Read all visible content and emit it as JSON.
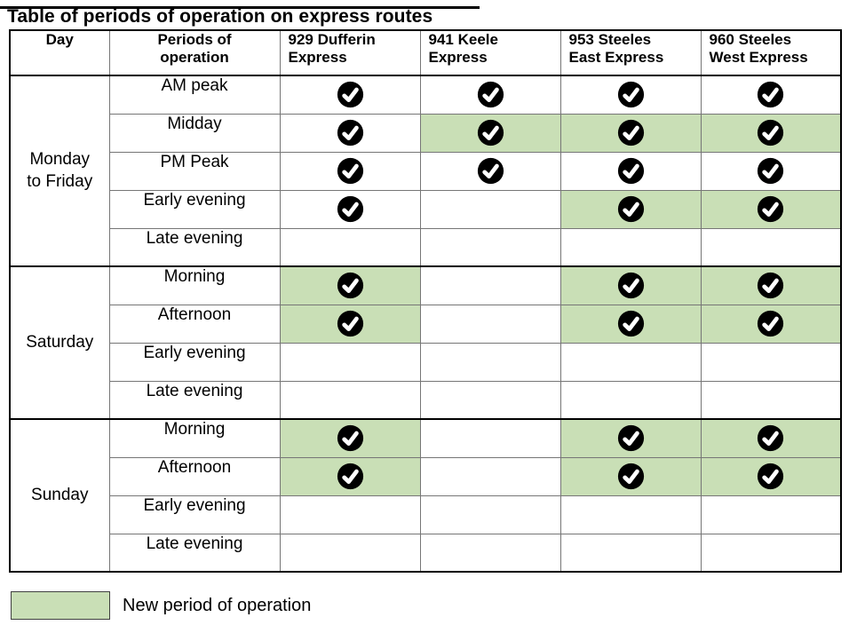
{
  "title": "Table of periods of operation on express routes",
  "colors": {
    "highlight_green": "#c9dfb6",
    "check_circle": "#000000",
    "check_mark": "#ffffff",
    "inner_grid": "#767676",
    "outer_border": "#000000"
  },
  "table": {
    "columns": [
      {
        "id": "day",
        "label": "Day"
      },
      {
        "id": "periods",
        "label": "Periods of\noperation"
      },
      {
        "id": "route-929",
        "label": "929 Dufferin\nExpress"
      },
      {
        "id": "route-941",
        "label": "941 Keele\nExpress"
      },
      {
        "id": "route-953",
        "label": "953 Steeles\nEast Express"
      },
      {
        "id": "route-960",
        "label": "960 Steeles\nWest Express"
      }
    ],
    "check_icon": "black-circle-white-check",
    "groups": [
      {
        "day": "Monday\nto Friday",
        "rows": [
          {
            "period": "AM peak",
            "cells": [
              {
                "operates": true,
                "new_period": false
              },
              {
                "operates": true,
                "new_period": false
              },
              {
                "operates": true,
                "new_period": false
              },
              {
                "operates": true,
                "new_period": false
              }
            ]
          },
          {
            "period": "Midday",
            "cells": [
              {
                "operates": true,
                "new_period": false
              },
              {
                "operates": true,
                "new_period": true
              },
              {
                "operates": true,
                "new_period": true
              },
              {
                "operates": true,
                "new_period": true
              }
            ]
          },
          {
            "period": "PM Peak",
            "cells": [
              {
                "operates": true,
                "new_period": false
              },
              {
                "operates": true,
                "new_period": false
              },
              {
                "operates": true,
                "new_period": false
              },
              {
                "operates": true,
                "new_period": false
              }
            ]
          },
          {
            "period": "Early evening",
            "cells": [
              {
                "operates": true,
                "new_period": false
              },
              {
                "operates": false,
                "new_period": false
              },
              {
                "operates": true,
                "new_period": true
              },
              {
                "operates": true,
                "new_period": true
              }
            ]
          },
          {
            "period": "Late evening",
            "cells": [
              {
                "operates": false,
                "new_period": false
              },
              {
                "operates": false,
                "new_period": false
              },
              {
                "operates": false,
                "new_period": false
              },
              {
                "operates": false,
                "new_period": false
              }
            ]
          }
        ]
      },
      {
        "day": "Saturday",
        "rows": [
          {
            "period": "Morning",
            "cells": [
              {
                "operates": true,
                "new_period": true
              },
              {
                "operates": false,
                "new_period": false
              },
              {
                "operates": true,
                "new_period": true
              },
              {
                "operates": true,
                "new_period": true
              }
            ]
          },
          {
            "period": "Afternoon",
            "cells": [
              {
                "operates": true,
                "new_period": true
              },
              {
                "operates": false,
                "new_period": false
              },
              {
                "operates": true,
                "new_period": true
              },
              {
                "operates": true,
                "new_period": true
              }
            ]
          },
          {
            "period": "Early evening",
            "cells": [
              {
                "operates": false,
                "new_period": false
              },
              {
                "operates": false,
                "new_period": false
              },
              {
                "operates": false,
                "new_period": false
              },
              {
                "operates": false,
                "new_period": false
              }
            ]
          },
          {
            "period": "Late evening",
            "cells": [
              {
                "operates": false,
                "new_period": false
              },
              {
                "operates": false,
                "new_period": false
              },
              {
                "operates": false,
                "new_period": false
              },
              {
                "operates": false,
                "new_period": false
              }
            ]
          }
        ]
      },
      {
        "day": "Sunday",
        "rows": [
          {
            "period": "Morning",
            "cells": [
              {
                "operates": true,
                "new_period": true
              },
              {
                "operates": false,
                "new_period": false
              },
              {
                "operates": true,
                "new_period": true
              },
              {
                "operates": true,
                "new_period": true
              }
            ]
          },
          {
            "period": "Afternoon",
            "cells": [
              {
                "operates": true,
                "new_period": true
              },
              {
                "operates": false,
                "new_period": false
              },
              {
                "operates": true,
                "new_period": true
              },
              {
                "operates": true,
                "new_period": true
              }
            ]
          },
          {
            "period": "Early evening",
            "cells": [
              {
                "operates": false,
                "new_period": false
              },
              {
                "operates": false,
                "new_period": false
              },
              {
                "operates": false,
                "new_period": false
              },
              {
                "operates": false,
                "new_period": false
              }
            ]
          },
          {
            "period": "Late evening",
            "cells": [
              {
                "operates": false,
                "new_period": false
              },
              {
                "operates": false,
                "new_period": false
              },
              {
                "operates": false,
                "new_period": false
              },
              {
                "operates": false,
                "new_period": false
              }
            ]
          }
        ]
      }
    ]
  },
  "legend": {
    "label": "New period of operation",
    "swatch_color": "#c9dfb6"
  }
}
